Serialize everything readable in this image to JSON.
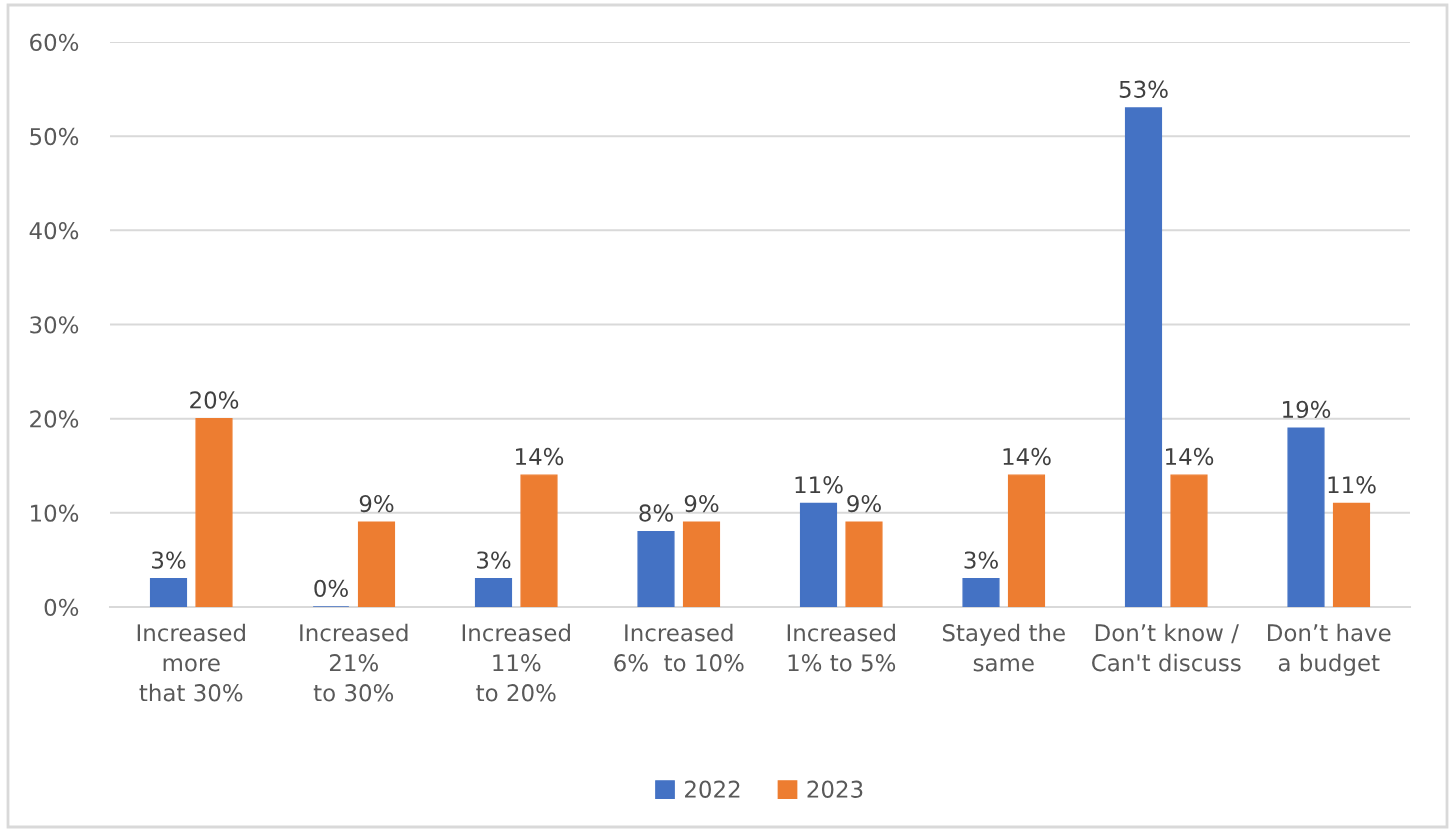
{
  "chart_data": {
    "type": "bar",
    "categories": [
      "Increased\nmore\nthat 30%",
      "Increased\n21%\nto 30%",
      "Increased\n11%\nto 20%",
      "Increased\n6%  to 10%",
      "Increased\n1% to 5%",
      "Stayed the\nsame",
      "Don’t know /\nCan't discuss",
      "Don’t have\na budget"
    ],
    "series": [
      {
        "name": "2022",
        "color": "#4472c4",
        "values": [
          3,
          0,
          3,
          8,
          11,
          3,
          53,
          19
        ],
        "value_labels": [
          "3%",
          "0%",
          "3%",
          "8%",
          "11%",
          "3%",
          "53%",
          "19%"
        ]
      },
      {
        "name": "2023",
        "color": "#ed7d31",
        "values": [
          20,
          9,
          14,
          9,
          9,
          14,
          14,
          11
        ],
        "value_labels": [
          "20%",
          "9%",
          "14%",
          "9%",
          "9%",
          "14%",
          "14%",
          "11%"
        ]
      }
    ],
    "ylim": [
      0,
      60
    ],
    "yticks": [
      {
        "value": 0,
        "label": "0%"
      },
      {
        "value": 10,
        "label": "10%"
      },
      {
        "value": 20,
        "label": "20%"
      },
      {
        "value": 30,
        "label": "30%"
      },
      {
        "value": 40,
        "label": "40%"
      },
      {
        "value": 50,
        "label": "50%"
      },
      {
        "value": 60,
        "label": "60%"
      }
    ],
    "grid": "y",
    "legend": "bottom"
  }
}
